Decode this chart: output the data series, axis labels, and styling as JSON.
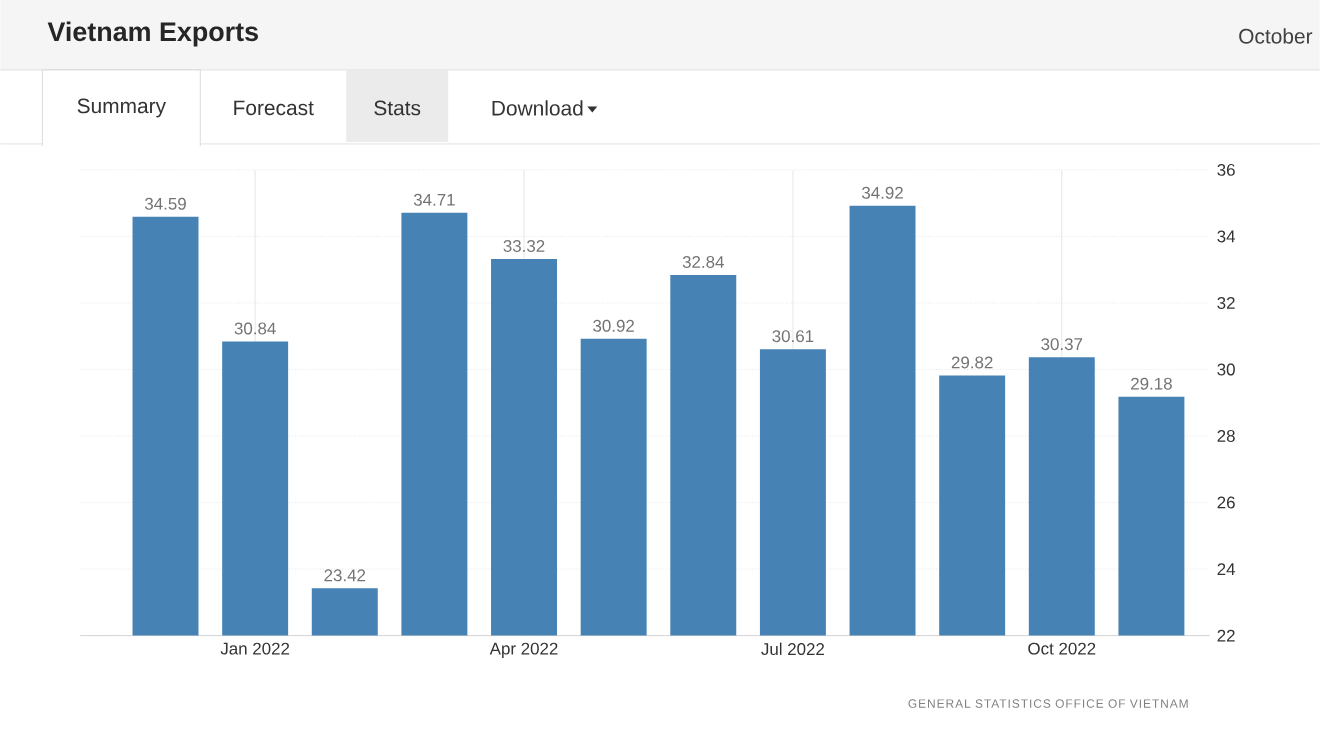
{
  "chart_data": {
    "type": "bar",
    "title": "Vietnam Exports",
    "categories": [
      null,
      "Jan 2022",
      null,
      null,
      "Apr 2022",
      null,
      null,
      "Jul 2022",
      null,
      null,
      "Oct 2022",
      null
    ],
    "values": [
      34.59,
      30.84,
      23.42,
      34.71,
      33.32,
      30.92,
      32.84,
      30.61,
      34.92,
      29.82,
      30.37,
      29.18
    ],
    "color": "#4682b4",
    "ylim": [
      22,
      36
    ],
    "yticks": [
      22,
      24,
      26,
      28,
      30,
      32,
      34,
      36
    ],
    "grid": true,
    "data_labels": true,
    "annotations": [
      "October",
      "Summary",
      "Forecast",
      "Stats",
      "Download",
      "GENERAL STATISTICS OFFICE OF VIETNAM"
    ]
  }
}
